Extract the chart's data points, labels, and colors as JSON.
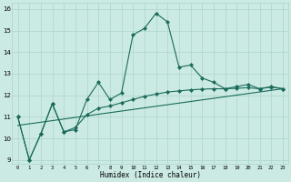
{
  "xlabel": "Humidex (Indice chaleur)",
  "bg_color": "#cceae4",
  "grid_color": "#aad4cc",
  "line_color": "#1a6b5a",
  "xlim": [
    -0.5,
    23.5
  ],
  "ylim": [
    8.8,
    16.3
  ],
  "yticks": [
    9,
    10,
    11,
    12,
    13,
    14,
    15,
    16
  ],
  "xticks": [
    0,
    1,
    2,
    3,
    4,
    5,
    6,
    7,
    8,
    9,
    10,
    11,
    12,
    13,
    14,
    15,
    16,
    17,
    18,
    19,
    20,
    21,
    22,
    23
  ],
  "line1_x": [
    0,
    1,
    2,
    3,
    4,
    5,
    6,
    7,
    8,
    9,
    10,
    11,
    12,
    13,
    14,
    15,
    16,
    17,
    18,
    19,
    20,
    21,
    22,
    23
  ],
  "line1_y": [
    11.0,
    9.0,
    10.2,
    11.6,
    10.3,
    10.4,
    11.8,
    12.6,
    11.8,
    12.1,
    14.8,
    15.1,
    15.8,
    15.4,
    13.3,
    13.4,
    12.8,
    12.6,
    12.3,
    12.4,
    12.5,
    12.3,
    12.4,
    12.3
  ],
  "line2_x": [
    0,
    1,
    2,
    3,
    4,
    5,
    6,
    7,
    8,
    9,
    10,
    11,
    12,
    13,
    14,
    15,
    16,
    17,
    18,
    19,
    20,
    21,
    22,
    23
  ],
  "line2_y": [
    11.0,
    9.0,
    10.2,
    11.6,
    10.3,
    10.5,
    11.1,
    11.4,
    11.5,
    11.65,
    11.8,
    11.95,
    12.05,
    12.15,
    12.2,
    12.25,
    12.28,
    12.3,
    12.3,
    12.32,
    12.35,
    12.3,
    12.38,
    12.3
  ],
  "line3_x": [
    0,
    23
  ],
  "line3_y": [
    10.6,
    12.3
  ],
  "marker": "D",
  "markersize": 2.2,
  "lw": 0.8
}
